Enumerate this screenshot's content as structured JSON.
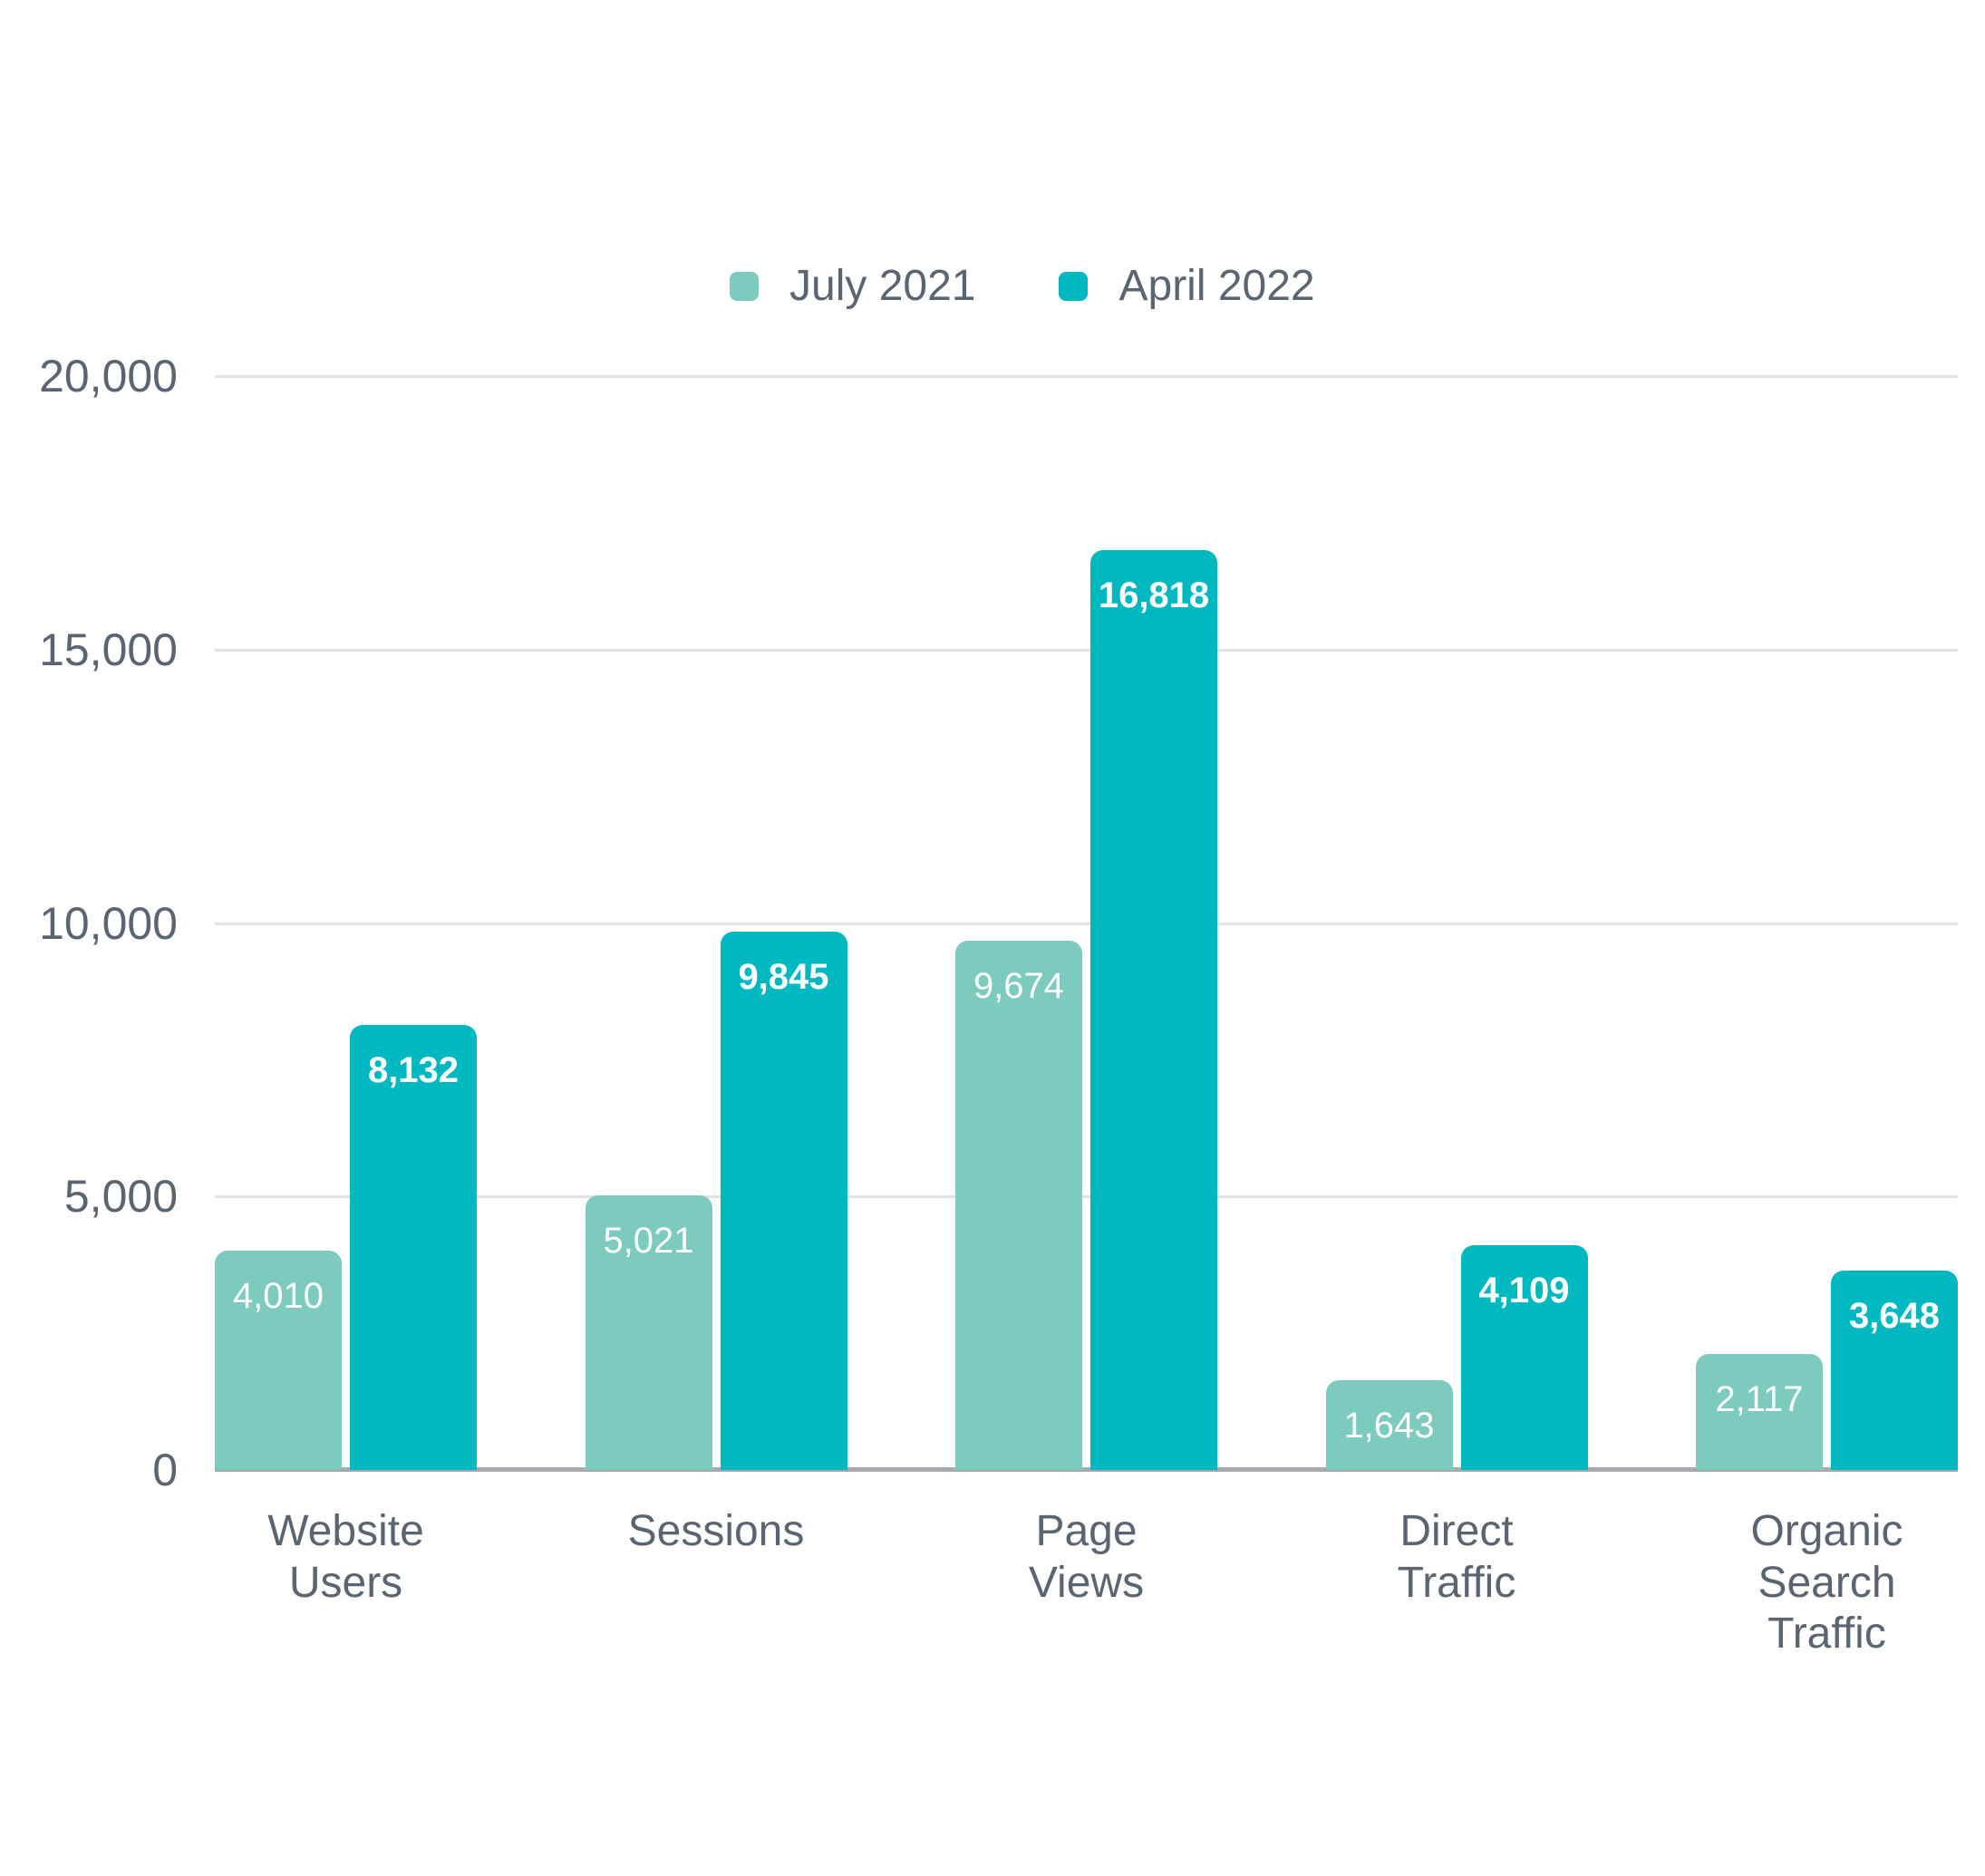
{
  "legend": {
    "items": [
      {
        "label": "July 2021",
        "color": "#7CCBBE"
      },
      {
        "label": "April 2022",
        "color": "#00B8BF"
      }
    ]
  },
  "chart_data": {
    "type": "bar",
    "title": "",
    "xlabel": "",
    "ylabel": "",
    "categories": [
      "Website Users",
      "Sessions",
      "Page Views",
      "Direct Traffic",
      "Organic Search Traffic"
    ],
    "series": [
      {
        "name": "July 2021",
        "color": "#7CCBBE",
        "values": [
          4010,
          5021,
          9674,
          1643,
          2117
        ],
        "display_values": [
          "4,010",
          "5,021",
          "9,674",
          "1,643",
          "2,117"
        ],
        "label_weight": "regular"
      },
      {
        "name": "April 2022",
        "color": "#00B8BF",
        "values": [
          8132,
          9845,
          16818,
          4109,
          3648
        ],
        "display_values": [
          "8,132",
          "9,845",
          "16,818",
          "4,109",
          "3,648"
        ],
        "label_weight": "bold"
      }
    ],
    "y_axis": {
      "min": 0,
      "max": 20000,
      "ticks": [
        0,
        5000,
        10000,
        15000,
        20000
      ],
      "tick_labels": [
        "0",
        "5,000",
        "10,000",
        "15,000",
        "20,000"
      ]
    },
    "grid": true,
    "legend_position": "top-center",
    "value_labels": "inside-top",
    "colors": {
      "axis_text": "#5A6571",
      "gridline": "#E0E2E5",
      "baseline": "#A6AAAF",
      "value_label_text": "#FFFFFF",
      "background": "#FFFFFF"
    }
  }
}
